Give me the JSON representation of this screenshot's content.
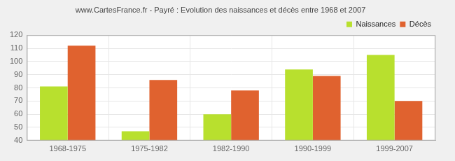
{
  "chart_data": {
    "type": "bar",
    "title": "www.CartesFrance.fr - Payré : Evolution des naissances et décès entre 1968 et 2007",
    "categories": [
      "1968-1975",
      "1975-1982",
      "1982-1990",
      "1990-1999",
      "1999-2007"
    ],
    "series": [
      {
        "name": "Naissances",
        "color": "#b8e02e",
        "values": [
          81,
          47,
          60,
          94,
          105
        ]
      },
      {
        "name": "Décès",
        "color": "#e0622f",
        "values": [
          112,
          86,
          78,
          89,
          70
        ]
      }
    ],
    "ylim": [
      40,
      120
    ],
    "yticks": [
      40,
      50,
      60,
      70,
      80,
      90,
      100,
      110,
      120
    ],
    "grid": true,
    "legend": "top-right"
  }
}
